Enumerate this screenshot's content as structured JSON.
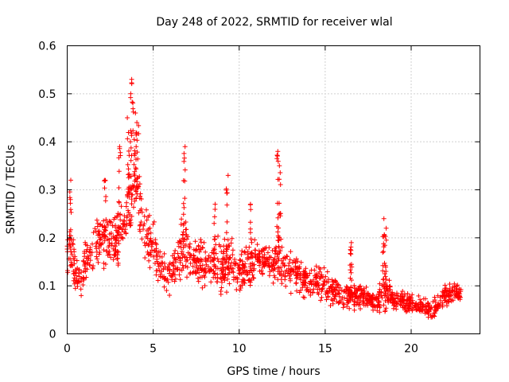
{
  "chart_data": {
    "type": "scatter",
    "title": "Day 248 of 2022, SRMTID for receiver wlal",
    "xlabel": "GPS time / hours",
    "ylabel": "SRMTID / TECUs",
    "xlim": [
      0,
      24
    ],
    "ylim": [
      0,
      0.6
    ],
    "xticks": [
      0,
      5,
      10,
      15,
      20
    ],
    "yticks": [
      0,
      0.1,
      0.2,
      0.3,
      0.4,
      0.5,
      0.6
    ],
    "xtick_labels": [
      "0",
      "5",
      "10",
      "15",
      "20"
    ],
    "ytick_labels": [
      "0",
      "0.1",
      "0.2",
      "0.3",
      "0.4",
      "0.5",
      "0.6"
    ],
    "grid": true,
    "marker": "+",
    "color": "#ff0000",
    "envelope": {
      "x": [
        0,
        0.2,
        0.5,
        0.8,
        1.0,
        1.5,
        2.0,
        2.5,
        3.0,
        3.4,
        3.7,
        3.9,
        4.2,
        4.5,
        5.0,
        5.5,
        6.0,
        6.5,
        6.8,
        7.2,
        8.0,
        8.5,
        9.0,
        9.5,
        10.0,
        10.5,
        11.0,
        11.5,
        12.0,
        12.3,
        12.7,
        13.0,
        13.5,
        14.0,
        14.5,
        15.0,
        15.5,
        16.0,
        16.5,
        17.0,
        17.5,
        18.0,
        18.4,
        18.7,
        19.0,
        19.5,
        20.0,
        20.5,
        21.0,
        21.5,
        22.0,
        22.5,
        22.9
      ],
      "base": [
        0.17,
        0.18,
        0.12,
        0.11,
        0.15,
        0.18,
        0.2,
        0.19,
        0.19,
        0.24,
        0.28,
        0.32,
        0.27,
        0.21,
        0.19,
        0.13,
        0.12,
        0.15,
        0.2,
        0.16,
        0.15,
        0.14,
        0.14,
        0.15,
        0.13,
        0.14,
        0.16,
        0.15,
        0.14,
        0.17,
        0.13,
        0.13,
        0.12,
        0.11,
        0.11,
        0.11,
        0.09,
        0.08,
        0.08,
        0.08,
        0.07,
        0.07,
        0.09,
        0.08,
        0.07,
        0.07,
        0.06,
        0.06,
        0.05,
        0.06,
        0.08,
        0.09,
        0.08
      ],
      "spread": [
        0.06,
        0.09,
        0.05,
        0.05,
        0.06,
        0.07,
        0.08,
        0.08,
        0.09,
        0.11,
        0.13,
        0.12,
        0.1,
        0.08,
        0.08,
        0.05,
        0.05,
        0.07,
        0.1,
        0.06,
        0.06,
        0.06,
        0.08,
        0.07,
        0.05,
        0.06,
        0.06,
        0.05,
        0.06,
        0.1,
        0.05,
        0.05,
        0.05,
        0.05,
        0.05,
        0.05,
        0.04,
        0.04,
        0.04,
        0.04,
        0.03,
        0.03,
        0.06,
        0.04,
        0.03,
        0.03,
        0.03,
        0.03,
        0.03,
        0.03,
        0.03,
        0.03,
        0.02
      ]
    },
    "spikes": [
      {
        "x": 0.2,
        "y": 0.32
      },
      {
        "x": 2.2,
        "y": 0.32
      },
      {
        "x": 3.05,
        "y": 0.39
      },
      {
        "x": 3.55,
        "y": 0.45
      },
      {
        "x": 3.7,
        "y": 0.5
      },
      {
        "x": 3.8,
        "y": 0.53
      },
      {
        "x": 3.95,
        "y": 0.46
      },
      {
        "x": 4.1,
        "y": 0.44
      },
      {
        "x": 6.8,
        "y": 0.39
      },
      {
        "x": 8.6,
        "y": 0.27
      },
      {
        "x": 9.3,
        "y": 0.33
      },
      {
        "x": 10.7,
        "y": 0.27
      },
      {
        "x": 12.25,
        "y": 0.38
      },
      {
        "x": 12.35,
        "y": 0.35
      },
      {
        "x": 16.5,
        "y": 0.19
      },
      {
        "x": 18.4,
        "y": 0.24
      },
      {
        "x": 18.5,
        "y": 0.22
      }
    ],
    "point_count": 1600
  }
}
